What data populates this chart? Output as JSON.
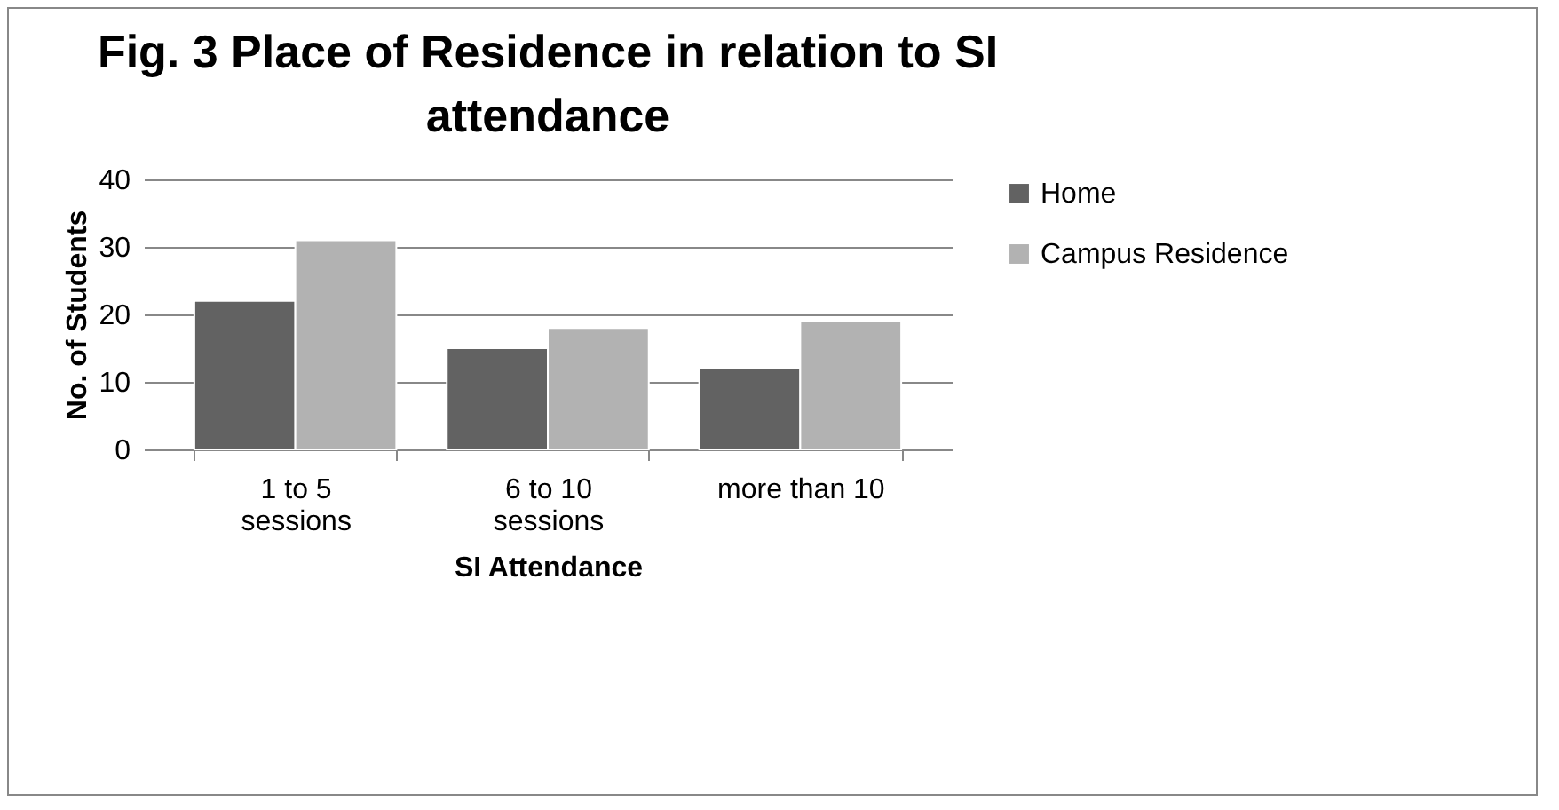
{
  "chart_data": {
    "type": "bar",
    "title": "Fig. 3 Place of Residence in relation to SI attendance",
    "xlabel": "SI Attendance",
    "ylabel": "No. of Students",
    "categories": [
      "1 to 5 sessions",
      "6 to 10 sessions",
      "more than 10"
    ],
    "series": [
      {
        "name": "Home",
        "color": "#626262",
        "values": [
          22,
          15,
          12
        ]
      },
      {
        "name": "Campus Residence",
        "color": "#b2b2b2",
        "values": [
          31,
          18,
          19
        ]
      }
    ],
    "ylim": [
      0,
      40
    ],
    "yticks": [
      0,
      10,
      20,
      30,
      40
    ],
    "grid": "y",
    "legend": "right"
  }
}
